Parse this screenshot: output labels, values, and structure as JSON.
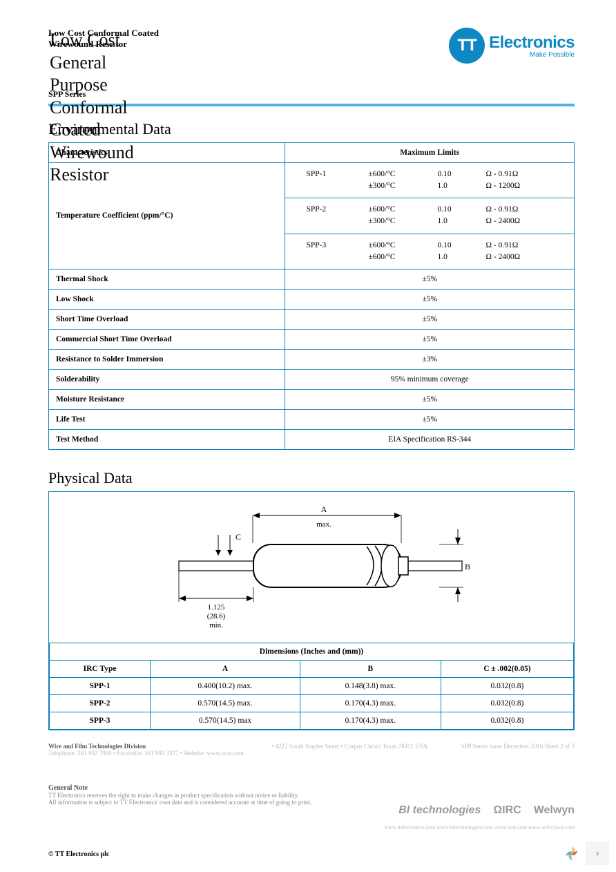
{
  "header": {
    "title_ghost": "Low Cost General Purpose\nConformal Coated\nWirewound Resistor",
    "title_small_line1": "Low Cost Conformal Coated",
    "title_small_line2": "Wirewound Resistor",
    "series": "SPP Series",
    "logo_tt": "TT",
    "logo_name": "Electronics",
    "logo_tag": "Make Possible"
  },
  "colors": {
    "accent": "#4db5e5",
    "border": "#0e7fb5",
    "logo": "#0e88c4"
  },
  "env": {
    "title": "Environmental Data",
    "header_char": "Characteristics",
    "header_max": "Maximum Limits",
    "tempco_label": "Temperature Coefficient (ppm/°C)",
    "tempco_rows": [
      {
        "model": "SPP-1",
        "l1a": "±600/°C",
        "l1b": "0.10",
        "l1c": "Ω - 0.91Ω",
        "l2a": "±300/°C",
        "l2b": "1.0",
        "l2c": "Ω - 1200Ω"
      },
      {
        "model": "SPP-2",
        "l1a": "±600/°C",
        "l1b": "0.10",
        "l1c": "Ω - 0.91Ω",
        "l2a": "±300/°C",
        "l2b": "1.0",
        "l2c": "Ω - 2400Ω"
      },
      {
        "model": "SPP-3",
        "l1a": "±600/°C",
        "l1b": "0.10",
        "l1c": "Ω - 0.91Ω",
        "l2a": "±600/°C",
        "l2b": "1.0",
        "l2c": "Ω - 2400Ω"
      }
    ],
    "simple_rows": [
      {
        "label": "Thermal Shock",
        "val": "±5%"
      },
      {
        "label": "Low Shock",
        "val": "±5%"
      },
      {
        "label": "Short Time Overload",
        "val": "±5%"
      },
      {
        "label": "Commercial Short Time Overload",
        "val": "±5%"
      },
      {
        "label": "Resistance to Solder Immersion",
        "val": "±3%"
      },
      {
        "label": "Solderability",
        "val": "95% minimum coverage"
      },
      {
        "label": "Moisture Resistance",
        "val": "±5%"
      },
      {
        "label": "Life Test",
        "val": "±5%"
      },
      {
        "label": "Test Method",
        "val": "EIA Specification RS-344"
      }
    ]
  },
  "phys": {
    "title": "Physical Data",
    "diagram": {
      "label_a": "A",
      "label_a_sub": "max.",
      "label_b": "B",
      "label_c": "C",
      "lead_dim": "1.125",
      "lead_mm": "(28.6)",
      "lead_sub": "min."
    },
    "dim_header": "Dimensions (Inches and (mm))",
    "cols": [
      "IRC Type",
      "A",
      "B",
      "C ± .002(0.05)"
    ],
    "rows": [
      {
        "type": "SPP-1",
        "a": "0.400(10.2) max.",
        "b": "0.148(3.8) max.",
        "c": "0.032(0.8)"
      },
      {
        "type": "SPP-2",
        "a": "0.570(14.5) max.",
        "b": "0.170(4.3) max.",
        "c": "0.032(0.8)"
      },
      {
        "type": "SPP-3",
        "a": "0.570(14.5) max",
        "b": "0.170(4.3) max.",
        "c": "0.032(0.8)"
      }
    ]
  },
  "footer": {
    "division": "Wire and Film Technologies Division",
    "addr_faded": "• 4222 South Staples Street • Corpus Christi Texas 78411 USA",
    "contact_faded": "Telephone: 361 992 7900 • Facsimile: 361 992 3377 • Website: www.irctt.com",
    "issue": "SPP Series Issue December 2016 Sheet 2 of 3",
    "gen_note_title": "General Note",
    "gen_note_l1": "TT Electronics reserves the right to make changes in product specification without notice or liability.",
    "gen_note_l2": "All information is subject to TT Electronics' own data and is considered accurate at time of going to print.",
    "brands": {
      "bi": "BI technologies",
      "irc": "ΩIRC",
      "welwyn": "Welwyn"
    },
    "brand_links": "www.ttelectronics.com     www.bitechnologies.com     www.irctt.com     www.welwyn-tt.com",
    "copyright": "© TT Electronics plc"
  }
}
